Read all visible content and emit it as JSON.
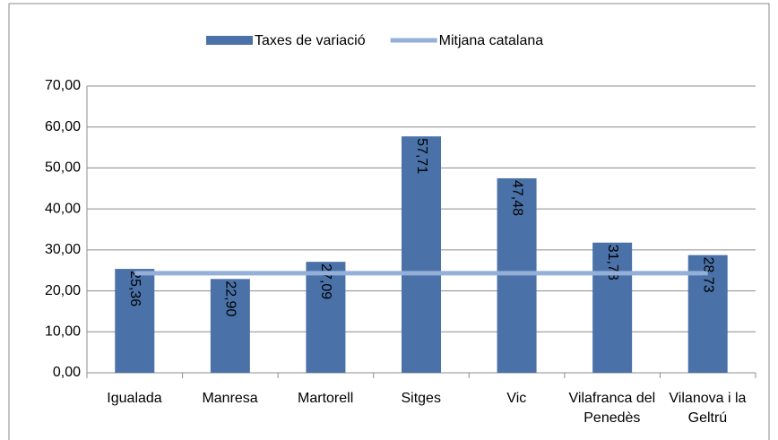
{
  "chart_data": {
    "type": "bar",
    "categories": [
      "Igualada",
      "Manresa",
      "Martorell",
      "Sitges",
      "Vic",
      "Vilafranca del Penedès",
      "Vilanova i la Geltrú"
    ],
    "series": [
      {
        "name": "Taxes de variació",
        "type": "bar",
        "color": "#4a72a8",
        "values": [
          25.36,
          22.9,
          27.09,
          57.71,
          47.48,
          31.78,
          28.73
        ],
        "value_labels": [
          "25,36",
          "22,90",
          "27,09",
          "57,71",
          "47,48",
          "31,78",
          "28,73"
        ]
      },
      {
        "name": "Mitjana catalana",
        "type": "line",
        "color": "#94afd8",
        "values": [
          24.3,
          24.3,
          24.3,
          24.3,
          24.3,
          24.3,
          24.3
        ]
      }
    ],
    "ylim": [
      0,
      70
    ],
    "yticks": [
      {
        "value": 0,
        "label": "0,00"
      },
      {
        "value": 10,
        "label": "10,00"
      },
      {
        "value": 20,
        "label": "20,00"
      },
      {
        "value": 30,
        "label": "30,00"
      },
      {
        "value": 40,
        "label": "40,00"
      },
      {
        "value": 50,
        "label": "50,00"
      },
      {
        "value": 60,
        "label": "60,00"
      },
      {
        "value": 70,
        "label": "70,00"
      }
    ],
    "grid": true,
    "legend": "top"
  }
}
